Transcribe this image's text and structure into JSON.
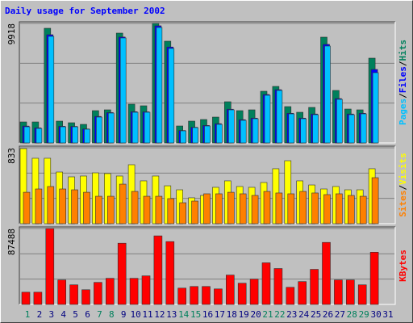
{
  "chart_data": [
    {
      "type": "bar",
      "title": "Daily usage for September 2002",
      "ylim": [
        0,
        9918
      ],
      "yticks": [
        9918
      ],
      "legend_separator": "/",
      "series": [
        {
          "name": "Hits",
          "color": "#00805c",
          "values": [
            1742,
            1742,
            9516,
            1809,
            1675,
            1541,
            2680,
            2747,
            9114,
            3216,
            3082,
            9918,
            8444,
            1407,
            1809,
            1943,
            2144,
            3418,
            2680,
            2747,
            4289,
            4691,
            3015,
            2546,
            2948,
            8779,
            4356,
            2814,
            2747,
            7036,
            0
          ]
        },
        {
          "name": "Files",
          "color": "#0000ff",
          "values": [
            1400,
            1250,
            8980,
            1380,
            1370,
            1160,
            2200,
            2520,
            8790,
            2590,
            2580,
            9720,
            7960,
            1030,
            1300,
            1450,
            1600,
            2800,
            1930,
            2060,
            4020,
            4420,
            2460,
            2060,
            2400,
            8180,
            3680,
            2400,
            2460,
            6100,
            0
          ]
        },
        {
          "name": "Pages",
          "color": "#00c0ff",
          "values": [
            1340,
            1206,
            8846,
            1340,
            1340,
            1139,
            2144,
            2479,
            8712,
            2546,
            2546,
            9583,
            7841,
            1005,
            1273,
            1407,
            1541,
            2747,
            1876,
            2010,
            3954,
            4356,
            2412,
            2010,
            2345,
            8042,
            3618,
            2345,
            2412,
            5830,
            0
          ]
        }
      ]
    },
    {
      "type": "bar",
      "ylim": [
        0,
        833
      ],
      "yticks": [
        833
      ],
      "legend_separator": "/",
      "series": [
        {
          "name": "Visits",
          "color": "#ffff00",
          "values": [
            824,
            718,
            718,
            567,
            514,
            523,
            558,
            550,
            523,
            647,
            470,
            523,
            416,
            372,
            284,
            310,
            399,
            470,
            408,
            399,
            452,
            603,
            691,
            470,
            425,
            381,
            408,
            372,
            372,
            603,
            0
          ]
        },
        {
          "name": "Sites",
          "color": "#ff8000",
          "values": [
            345,
            381,
            408,
            381,
            372,
            345,
            301,
            301,
            434,
            354,
            301,
            301,
            275,
            230,
            248,
            328,
            328,
            345,
            328,
            310,
            354,
            337,
            328,
            354,
            337,
            319,
            328,
            310,
            301,
            505,
            0
          ]
        }
      ]
    },
    {
      "type": "bar",
      "ylim": [
        0,
        87488
      ],
      "yticks": [
        87488
      ],
      "categories": [
        "1",
        "2",
        "3",
        "4",
        "5",
        "6",
        "7",
        "8",
        "9",
        "10",
        "11",
        "12",
        "13",
        "14",
        "15",
        "16",
        "17",
        "18",
        "19",
        "20",
        "21",
        "22",
        "23",
        "24",
        "25",
        "26",
        "27",
        "28",
        "29",
        "30",
        "31"
      ],
      "category_colors": [
        "#00805c",
        "#000080",
        "#000080",
        "#000080",
        "#000080",
        "#000080",
        "#00805c",
        "#00805c",
        "#000080",
        "#000080",
        "#000080",
        "#000080",
        "#000080",
        "#00805c",
        "#00805c",
        "#000080",
        "#000080",
        "#000080",
        "#000080",
        "#000080",
        "#00805c",
        "#00805c",
        "#000080",
        "#000080",
        "#000080",
        "#000080",
        "#000080",
        "#00805c",
        "#00805c",
        "#000080",
        "#000080"
      ],
      "series": [
        {
          "name": "KBytes",
          "color": "#ff0000",
          "values": [
            14111,
            14111,
            87488,
            28222,
            22577,
            16933,
            25400,
            30104,
            70555,
            30104,
            32926,
            79022,
            72437,
            18814,
            20696,
            20696,
            17874,
            33867,
            24459,
            29163,
            47977,
            41392,
            19755,
            26341,
            40451,
            71496,
            28222,
            28222,
            22577,
            60208,
            0
          ]
        }
      ]
    }
  ]
}
